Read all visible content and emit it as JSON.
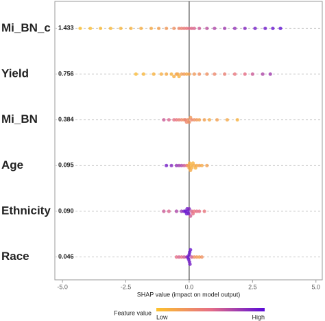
{
  "chart_data": {
    "type": "beeswarm",
    "xlabel": "SHAP value (impact on model output)",
    "xlim": [
      -5.3,
      5.25
    ],
    "xticks": [
      {
        "value": -5,
        "label": "-5.0"
      },
      {
        "value": -2.5,
        "label": "-2.5"
      },
      {
        "value": 0,
        "label": "0.0"
      },
      {
        "value": 2.5,
        "label": "2.5"
      },
      {
        "value": 5,
        "label": "5.0"
      }
    ],
    "categories": [
      "Mi_BN_c",
      "Yield",
      "Mi_BN",
      "Age",
      "Ethnicity",
      "Race"
    ],
    "values": [
      1.433,
      0.756,
      0.384,
      0.095,
      0.09,
      0.046
    ],
    "value_labels": [
      "1.433",
      "0.756",
      "0.384",
      "0.095",
      "0.090",
      "0.046"
    ],
    "points": [
      {
        "shap": [
          -4.3,
          -3.9,
          -3.5,
          -3.1,
          -2.7,
          -2.3,
          -1.9,
          -1.5,
          -1.2,
          -0.9,
          -0.6,
          -0.4,
          -0.3,
          -0.2,
          -0.1,
          0,
          0.1,
          0.2,
          0.4,
          0.7,
          1.0,
          1.4,
          1.8,
          2.2,
          2.6,
          3.0,
          3.3,
          3.6
        ],
        "feature_value": [
          0.02,
          0.03,
          0.05,
          0.06,
          0.08,
          0.1,
          0.12,
          0.15,
          0.2,
          0.25,
          0.3,
          0.35,
          0.4,
          0.42,
          0.45,
          0.5,
          0.52,
          0.55,
          0.6,
          0.65,
          0.7,
          0.75,
          0.8,
          0.85,
          0.9,
          0.92,
          0.95,
          0.98
        ]
      },
      {
        "shap": [
          -2.1,
          -1.8,
          -1.4,
          -1.1,
          -0.9,
          -0.7,
          -0.6,
          -0.5,
          -0.45,
          -0.4,
          -0.3,
          -0.2,
          -0.1,
          0,
          0.2,
          0.4,
          0.7,
          1.0,
          1.4,
          1.8,
          2.2,
          2.5,
          2.9,
          3.2
        ],
        "feature_value": [
          0.05,
          0.08,
          0.1,
          0.12,
          0.15,
          0.1,
          0.12,
          0.2,
          0.15,
          0.1,
          0.2,
          0.25,
          0.15,
          0.2,
          0.25,
          0.3,
          0.3,
          0.35,
          0.4,
          0.45,
          0.5,
          0.6,
          0.7,
          0.75
        ]
      },
      {
        "shap": [
          -1.0,
          -0.8,
          -0.6,
          -0.5,
          -0.4,
          -0.3,
          -0.2,
          -0.15,
          -0.1,
          -0.05,
          0,
          0.05,
          0.1,
          0.2,
          0.3,
          0.4,
          0.6,
          0.8,
          1.1,
          1.5,
          1.9
        ],
        "feature_value": [
          0.6,
          0.55,
          0.5,
          0.45,
          0.4,
          0.35,
          0.3,
          0.4,
          0.35,
          0.3,
          0.3,
          0.25,
          0.35,
          0.3,
          0.25,
          0.2,
          0.2,
          0.15,
          0.2,
          0.15,
          0.1
        ],
        "note_free": null
      },
      {
        "shap": [
          -0.9,
          -0.7,
          -0.5,
          -0.4,
          -0.3,
          -0.2,
          -0.1,
          -0.05,
          0,
          0.02,
          0.05,
          0.08,
          0.1,
          0.15,
          0.2,
          0.25,
          0.3,
          0.4,
          0.5,
          0.7
        ],
        "feature_value": [
          0.9,
          0.85,
          0.8,
          0.75,
          0.7,
          0.6,
          0.5,
          0.2,
          0.15,
          0.1,
          0.15,
          0.1,
          0.12,
          0.1,
          0.15,
          0.1,
          0.15,
          0.2,
          0.15,
          0.2
        ]
      },
      {
        "shap": [
          -1.0,
          -0.8,
          -0.5,
          -0.3,
          -0.2,
          -0.15,
          -0.1,
          -0.08,
          -0.05,
          -0.02,
          0,
          0.05,
          0.1,
          0.15,
          0.2,
          0.3,
          0.4,
          0.6
        ],
        "feature_value": [
          0.6,
          0.55,
          0.7,
          0.8,
          0.9,
          0.95,
          0.95,
          0.9,
          0.95,
          0.9,
          0.85,
          0.6,
          0.55,
          0.5,
          0.45,
          0.5,
          0.5,
          0.45
        ]
      },
      {
        "shap": [
          -0.5,
          -0.4,
          -0.3,
          -0.2,
          -0.1,
          -0.05,
          -0.02,
          0,
          0.01,
          0.02,
          0.03,
          0.05,
          0.1,
          0.2,
          0.3,
          0.4,
          0.5
        ],
        "feature_value": [
          0.5,
          0.55,
          0.5,
          0.6,
          0.7,
          0.95,
          0.95,
          0.95,
          0.9,
          0.95,
          0.9,
          0.95,
          0.6,
          0.3,
          0.25,
          0.2,
          0.3
        ]
      }
    ],
    "colorbar_label": "Feature value",
    "colorbar_low": "Low",
    "colorbar_high": "High",
    "colormap": [
      "#fcc22c",
      "#e66e86",
      "#5a0bd8"
    ]
  }
}
